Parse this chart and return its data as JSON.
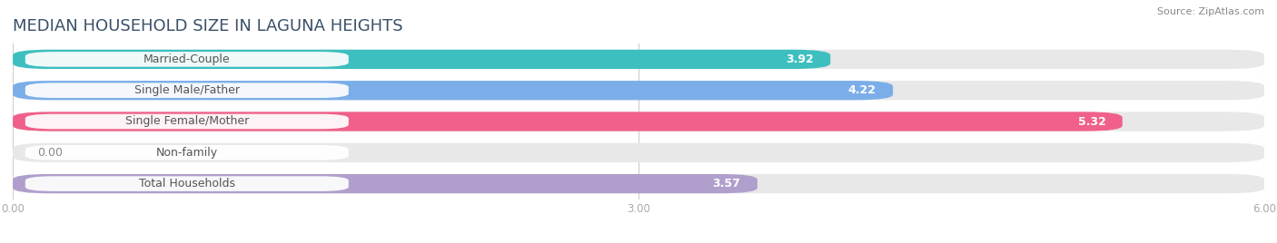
{
  "title": "MEDIAN HOUSEHOLD SIZE IN LAGUNA HEIGHTS",
  "source": "Source: ZipAtlas.com",
  "categories": [
    "Married-Couple",
    "Single Male/Father",
    "Single Female/Mother",
    "Non-family",
    "Total Households"
  ],
  "values": [
    3.92,
    4.22,
    5.32,
    0.0,
    3.57
  ],
  "bar_colors": [
    "#3DBFBF",
    "#7BAEE8",
    "#F0608A",
    "#F5C99A",
    "#B09FCC"
  ],
  "xlim": [
    0,
    6.0
  ],
  "xticks": [
    0.0,
    3.0,
    6.0
  ],
  "xtick_labels": [
    "0.00",
    "3.00",
    "6.00"
  ],
  "background_color": "#ffffff",
  "bar_bg_color": "#e8e8e8",
  "title_fontsize": 13,
  "label_fontsize": 9,
  "value_fontsize": 9,
  "bar_height": 0.62,
  "title_color": "#3a5068",
  "source_color": "#888888",
  "label_text_color": "#555555",
  "value_color_inside": "#ffffff",
  "value_color_outside": "#888888",
  "grid_color": "#cccccc",
  "tick_color": "#aaaaaa"
}
